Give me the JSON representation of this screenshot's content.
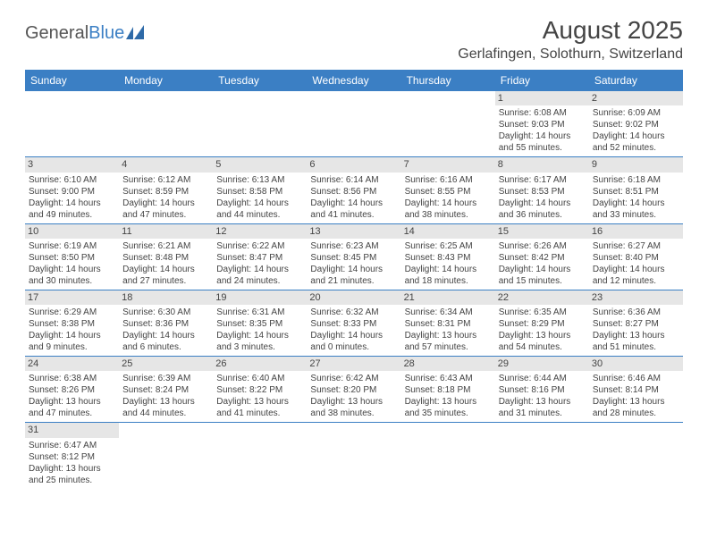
{
  "logo": {
    "text1": "General",
    "text2": "Blue"
  },
  "title": "August 2025",
  "location": "Gerlafingen, Solothurn, Switzerland",
  "colors": {
    "header_bg": "#3b7fc4",
    "header_fg": "#ffffff",
    "daynum_bg": "#e6e6e6",
    "text": "#444444",
    "rule": "#3b7fc4",
    "page_bg": "#ffffff"
  },
  "fonts": {
    "title_size": 28,
    "location_size": 16,
    "th_size": 12,
    "cell_size": 10
  },
  "day_labels": [
    "Sunday",
    "Monday",
    "Tuesday",
    "Wednesday",
    "Thursday",
    "Friday",
    "Saturday"
  ],
  "weeks": [
    [
      {
        "n": "",
        "sr": "",
        "ss": "",
        "dl": ""
      },
      {
        "n": "",
        "sr": "",
        "ss": "",
        "dl": ""
      },
      {
        "n": "",
        "sr": "",
        "ss": "",
        "dl": ""
      },
      {
        "n": "",
        "sr": "",
        "ss": "",
        "dl": ""
      },
      {
        "n": "",
        "sr": "",
        "ss": "",
        "dl": ""
      },
      {
        "n": "1",
        "sr": "Sunrise: 6:08 AM",
        "ss": "Sunset: 9:03 PM",
        "dl": "Daylight: 14 hours and 55 minutes."
      },
      {
        "n": "2",
        "sr": "Sunrise: 6:09 AM",
        "ss": "Sunset: 9:02 PM",
        "dl": "Daylight: 14 hours and 52 minutes."
      }
    ],
    [
      {
        "n": "3",
        "sr": "Sunrise: 6:10 AM",
        "ss": "Sunset: 9:00 PM",
        "dl": "Daylight: 14 hours and 49 minutes."
      },
      {
        "n": "4",
        "sr": "Sunrise: 6:12 AM",
        "ss": "Sunset: 8:59 PM",
        "dl": "Daylight: 14 hours and 47 minutes."
      },
      {
        "n": "5",
        "sr": "Sunrise: 6:13 AM",
        "ss": "Sunset: 8:58 PM",
        "dl": "Daylight: 14 hours and 44 minutes."
      },
      {
        "n": "6",
        "sr": "Sunrise: 6:14 AM",
        "ss": "Sunset: 8:56 PM",
        "dl": "Daylight: 14 hours and 41 minutes."
      },
      {
        "n": "7",
        "sr": "Sunrise: 6:16 AM",
        "ss": "Sunset: 8:55 PM",
        "dl": "Daylight: 14 hours and 38 minutes."
      },
      {
        "n": "8",
        "sr": "Sunrise: 6:17 AM",
        "ss": "Sunset: 8:53 PM",
        "dl": "Daylight: 14 hours and 36 minutes."
      },
      {
        "n": "9",
        "sr": "Sunrise: 6:18 AM",
        "ss": "Sunset: 8:51 PM",
        "dl": "Daylight: 14 hours and 33 minutes."
      }
    ],
    [
      {
        "n": "10",
        "sr": "Sunrise: 6:19 AM",
        "ss": "Sunset: 8:50 PM",
        "dl": "Daylight: 14 hours and 30 minutes."
      },
      {
        "n": "11",
        "sr": "Sunrise: 6:21 AM",
        "ss": "Sunset: 8:48 PM",
        "dl": "Daylight: 14 hours and 27 minutes."
      },
      {
        "n": "12",
        "sr": "Sunrise: 6:22 AM",
        "ss": "Sunset: 8:47 PM",
        "dl": "Daylight: 14 hours and 24 minutes."
      },
      {
        "n": "13",
        "sr": "Sunrise: 6:23 AM",
        "ss": "Sunset: 8:45 PM",
        "dl": "Daylight: 14 hours and 21 minutes."
      },
      {
        "n": "14",
        "sr": "Sunrise: 6:25 AM",
        "ss": "Sunset: 8:43 PM",
        "dl": "Daylight: 14 hours and 18 minutes."
      },
      {
        "n": "15",
        "sr": "Sunrise: 6:26 AM",
        "ss": "Sunset: 8:42 PM",
        "dl": "Daylight: 14 hours and 15 minutes."
      },
      {
        "n": "16",
        "sr": "Sunrise: 6:27 AM",
        "ss": "Sunset: 8:40 PM",
        "dl": "Daylight: 14 hours and 12 minutes."
      }
    ],
    [
      {
        "n": "17",
        "sr": "Sunrise: 6:29 AM",
        "ss": "Sunset: 8:38 PM",
        "dl": "Daylight: 14 hours and 9 minutes."
      },
      {
        "n": "18",
        "sr": "Sunrise: 6:30 AM",
        "ss": "Sunset: 8:36 PM",
        "dl": "Daylight: 14 hours and 6 minutes."
      },
      {
        "n": "19",
        "sr": "Sunrise: 6:31 AM",
        "ss": "Sunset: 8:35 PM",
        "dl": "Daylight: 14 hours and 3 minutes."
      },
      {
        "n": "20",
        "sr": "Sunrise: 6:32 AM",
        "ss": "Sunset: 8:33 PM",
        "dl": "Daylight: 14 hours and 0 minutes."
      },
      {
        "n": "21",
        "sr": "Sunrise: 6:34 AM",
        "ss": "Sunset: 8:31 PM",
        "dl": "Daylight: 13 hours and 57 minutes."
      },
      {
        "n": "22",
        "sr": "Sunrise: 6:35 AM",
        "ss": "Sunset: 8:29 PM",
        "dl": "Daylight: 13 hours and 54 minutes."
      },
      {
        "n": "23",
        "sr": "Sunrise: 6:36 AM",
        "ss": "Sunset: 8:27 PM",
        "dl": "Daylight: 13 hours and 51 minutes."
      }
    ],
    [
      {
        "n": "24",
        "sr": "Sunrise: 6:38 AM",
        "ss": "Sunset: 8:26 PM",
        "dl": "Daylight: 13 hours and 47 minutes."
      },
      {
        "n": "25",
        "sr": "Sunrise: 6:39 AM",
        "ss": "Sunset: 8:24 PM",
        "dl": "Daylight: 13 hours and 44 minutes."
      },
      {
        "n": "26",
        "sr": "Sunrise: 6:40 AM",
        "ss": "Sunset: 8:22 PM",
        "dl": "Daylight: 13 hours and 41 minutes."
      },
      {
        "n": "27",
        "sr": "Sunrise: 6:42 AM",
        "ss": "Sunset: 8:20 PM",
        "dl": "Daylight: 13 hours and 38 minutes."
      },
      {
        "n": "28",
        "sr": "Sunrise: 6:43 AM",
        "ss": "Sunset: 8:18 PM",
        "dl": "Daylight: 13 hours and 35 minutes."
      },
      {
        "n": "29",
        "sr": "Sunrise: 6:44 AM",
        "ss": "Sunset: 8:16 PM",
        "dl": "Daylight: 13 hours and 31 minutes."
      },
      {
        "n": "30",
        "sr": "Sunrise: 6:46 AM",
        "ss": "Sunset: 8:14 PM",
        "dl": "Daylight: 13 hours and 28 minutes."
      }
    ],
    [
      {
        "n": "31",
        "sr": "Sunrise: 6:47 AM",
        "ss": "Sunset: 8:12 PM",
        "dl": "Daylight: 13 hours and 25 minutes."
      },
      {
        "n": "",
        "sr": "",
        "ss": "",
        "dl": ""
      },
      {
        "n": "",
        "sr": "",
        "ss": "",
        "dl": ""
      },
      {
        "n": "",
        "sr": "",
        "ss": "",
        "dl": ""
      },
      {
        "n": "",
        "sr": "",
        "ss": "",
        "dl": ""
      },
      {
        "n": "",
        "sr": "",
        "ss": "",
        "dl": ""
      },
      {
        "n": "",
        "sr": "",
        "ss": "",
        "dl": ""
      }
    ]
  ]
}
